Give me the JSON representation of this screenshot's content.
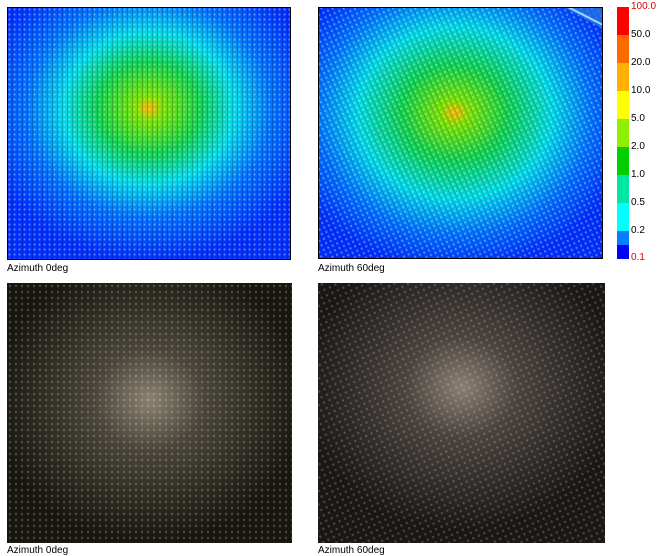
{
  "panels": [
    {
      "caption": "Azimuth 0deg"
    },
    {
      "caption": "Azimuth 60deg"
    },
    {
      "caption": "Azimuth 0deg"
    },
    {
      "caption": "Azimuth 60deg"
    }
  ],
  "colorbar": {
    "labels": [
      "100.0",
      "50.0",
      "20.0",
      "10.0",
      "5.0",
      "2.0",
      "1.0",
      "0.5",
      "0.2",
      "0.1"
    ]
  }
}
